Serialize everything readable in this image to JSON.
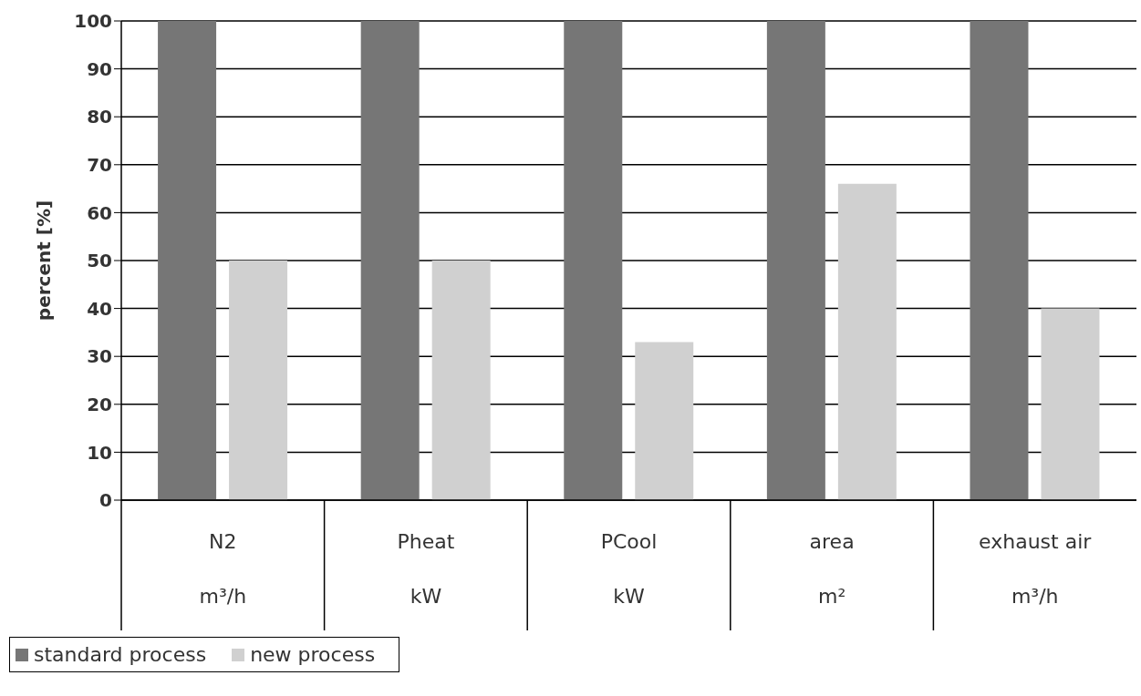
{
  "chart_data": {
    "type": "bar",
    "ylabel": "percent [%]",
    "categories": [
      "N2\nm³/h",
      "Pheat\nkW",
      "PCool\nkW",
      "area\nm²",
      "exhaust air\nm³/h"
    ],
    "series": [
      {
        "name": "standard process",
        "color": "#767676",
        "values": [
          100,
          100,
          100,
          100,
          100
        ]
      },
      {
        "name": "new process",
        "color": "#d0d0d0",
        "values": [
          50,
          50,
          33,
          66,
          40
        ]
      }
    ],
    "ylim": [
      0,
      100
    ],
    "yticks": [
      0,
      10,
      20,
      30,
      40,
      50,
      60,
      70,
      80,
      90,
      100
    ],
    "grid": "y",
    "legend": "bottom left"
  }
}
